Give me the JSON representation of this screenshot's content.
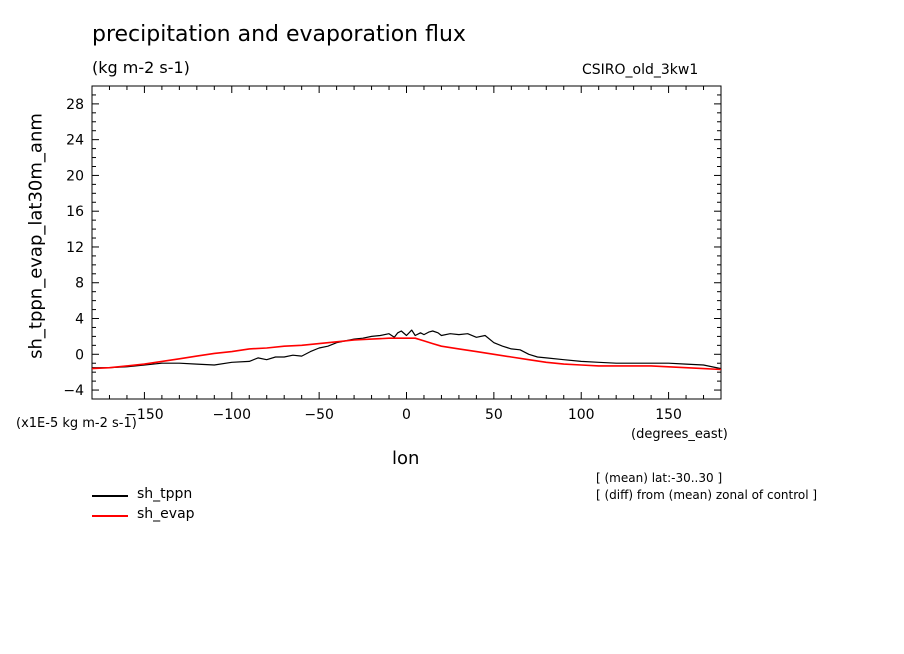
{
  "chart_data": {
    "type": "line",
    "title": "precipitation and evaporation flux",
    "subtitle": "(kg m-2 s-1)",
    "model": "CSIRO_old_3kw1",
    "ylabel": "sh_tppn_evap_lat30m_anm",
    "scale_note": "(x1E-5 kg m-2 s-1)",
    "xlabel": "lon",
    "x_units": "(degrees_east)",
    "xlim": [
      -180,
      180
    ],
    "ylim": [
      -5,
      30
    ],
    "xticks": [
      -150,
      -100,
      -50,
      0,
      50,
      100,
      150
    ],
    "yticks": [
      -4,
      0,
      4,
      8,
      12,
      16,
      20,
      24,
      28
    ],
    "notes": [
      "[ (mean) lat:-30..30 ]",
      "[ (diff) from (mean) zonal of control ]"
    ],
    "series": [
      {
        "name": "sh_tppn",
        "color": "#000000",
        "x": [
          -180,
          -170,
          -160,
          -150,
          -140,
          -130,
          -120,
          -110,
          -100,
          -90,
          -85,
          -80,
          -75,
          -70,
          -65,
          -60,
          -55,
          -50,
          -45,
          -40,
          -35,
          -30,
          -25,
          -20,
          -15,
          -10,
          -7,
          -5,
          -3,
          0,
          3,
          5,
          8,
          10,
          13,
          15,
          18,
          20,
          25,
          30,
          35,
          40,
          45,
          50,
          55,
          60,
          65,
          70,
          75,
          80,
          90,
          100,
          110,
          120,
          130,
          140,
          150,
          160,
          170,
          180
        ],
        "y": [
          -1.5,
          -1.5,
          -1.4,
          -1.2,
          -1.0,
          -1.0,
          -1.1,
          -1.2,
          -0.9,
          -0.8,
          -0.4,
          -0.6,
          -0.3,
          -0.3,
          -0.1,
          -0.2,
          0.3,
          0.7,
          0.9,
          1.3,
          1.5,
          1.7,
          1.8,
          2.0,
          2.1,
          2.3,
          1.9,
          2.4,
          2.6,
          2.1,
          2.7,
          2.1,
          2.4,
          2.2,
          2.5,
          2.6,
          2.4,
          2.1,
          2.3,
          2.2,
          2.3,
          1.9,
          2.1,
          1.3,
          0.9,
          0.6,
          0.5,
          0.0,
          -0.3,
          -0.4,
          -0.6,
          -0.8,
          -0.9,
          -1.0,
          -1.0,
          -1.0,
          -1.0,
          -1.1,
          -1.2,
          -1.6
        ]
      },
      {
        "name": "sh_evap",
        "color": "#ff0000",
        "x": [
          -180,
          -170,
          -160,
          -150,
          -140,
          -130,
          -120,
          -110,
          -100,
          -90,
          -80,
          -70,
          -60,
          -50,
          -40,
          -30,
          -20,
          -10,
          0,
          5,
          10,
          15,
          20,
          30,
          40,
          50,
          60,
          70,
          80,
          90,
          100,
          110,
          120,
          130,
          140,
          150,
          160,
          170,
          180
        ],
        "y": [
          -1.6,
          -1.5,
          -1.3,
          -1.1,
          -0.8,
          -0.5,
          -0.2,
          0.1,
          0.3,
          0.6,
          0.7,
          0.9,
          1.0,
          1.2,
          1.4,
          1.6,
          1.7,
          1.8,
          1.8,
          1.8,
          1.5,
          1.2,
          0.9,
          0.6,
          0.3,
          0.0,
          -0.3,
          -0.6,
          -0.9,
          -1.1,
          -1.2,
          -1.3,
          -1.3,
          -1.3,
          -1.3,
          -1.4,
          -1.5,
          -1.6,
          -1.7
        ]
      }
    ]
  }
}
